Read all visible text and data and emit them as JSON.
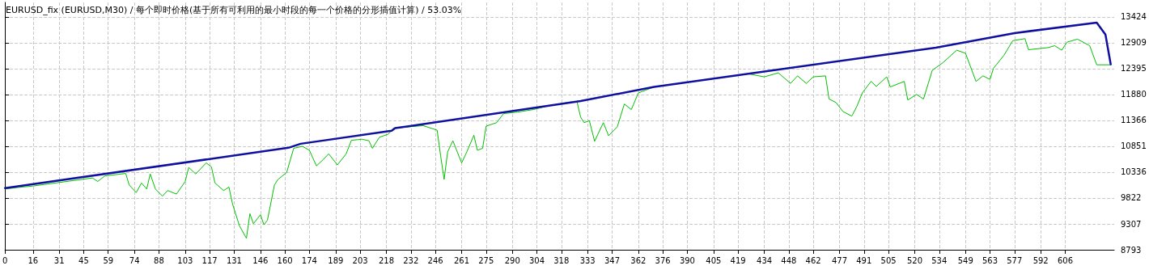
{
  "chart_data": {
    "type": "line",
    "title": "EURUSD_fix (EURUSD,M30) / 每个即时价格(基于所有可利用的最小时段的每一个价格的分形插值计算) / 53.03%",
    "xlim": [
      0,
      634
    ],
    "xticks": [
      0,
      16,
      31,
      45,
      59,
      74,
      88,
      103,
      117,
      131,
      146,
      160,
      174,
      189,
      203,
      218,
      232,
      246,
      261,
      275,
      290,
      304,
      318,
      333,
      347,
      362,
      376,
      390,
      405,
      419,
      434,
      448,
      462,
      477,
      491,
      505,
      520,
      534,
      549,
      563,
      577,
      592,
      606
    ],
    "ylim": [
      8793,
      13710
    ],
    "yticks": [
      8793,
      9307,
      9822,
      10336,
      10851,
      11366,
      11880,
      12395,
      12909,
      13424
    ],
    "grid": true,
    "marker": "none",
    "line_style": "solid",
    "series": [
      {
        "color": "#00c000",
        "x": [
          0,
          7,
          16,
          50,
          53,
          57,
          69,
          71,
          75,
          78,
          81,
          83,
          86,
          90,
          93,
          98,
          103,
          105,
          109,
          115,
          118,
          120,
          125,
          128,
          130,
          134,
          138,
          140,
          142,
          146,
          148,
          150,
          154,
          156,
          161,
          165,
          170,
          174,
          178,
          182,
          185,
          190,
          195,
          198,
          204,
          208,
          210,
          214,
          219,
          222,
          239,
          247,
          249,
          251,
          253,
          256,
          261,
          264,
          268,
          270,
          273,
          275,
          281,
          285,
          293,
          302,
          310,
          323,
          327,
          329,
          331,
          334,
          337,
          342,
          345,
          350,
          354,
          358,
          362,
          371,
          425,
          434,
          442,
          449,
          453,
          458,
          462,
          469,
          471,
          475,
          479,
          484,
          487,
          490,
          495,
          498,
          504,
          506,
          514,
          516,
          521,
          525,
          530,
          536,
          544,
          549,
          555,
          559,
          563,
          565,
          571,
          576,
          583,
          585,
          596,
          600,
          604,
          607,
          613,
          620,
          624,
          632
        ],
        "values": [
          10000,
          10030,
          10060,
          10220,
          10150,
          10260,
          10310,
          10080,
          9930,
          10120,
          10000,
          10300,
          10000,
          9860,
          9970,
          9900,
          10150,
          10430,
          10300,
          10520,
          10440,
          10120,
          9970,
          10040,
          9710,
          9270,
          9020,
          9510,
          9310,
          9490,
          9290,
          9380,
          10080,
          10190,
          10330,
          10810,
          10850,
          10770,
          10460,
          10590,
          10700,
          10480,
          10700,
          10970,
          10990,
          10960,
          10810,
          11030,
          11090,
          11210,
          11260,
          11170,
          10660,
          10190,
          10740,
          10960,
          10520,
          10740,
          11070,
          10770,
          10810,
          11250,
          11320,
          11500,
          11530,
          11580,
          11650,
          11730,
          11730,
          11430,
          11320,
          11360,
          10950,
          11320,
          11060,
          11240,
          11690,
          11580,
          11910,
          12030,
          12290,
          12230,
          12310,
          12100,
          12250,
          12100,
          12230,
          12250,
          11790,
          11720,
          11540,
          11450,
          11650,
          11910,
          12140,
          12040,
          12230,
          12030,
          12140,
          11770,
          11880,
          11790,
          12360,
          12510,
          12760,
          12700,
          12140,
          12250,
          12180,
          12400,
          12660,
          12950,
          12990,
          12770,
          12810,
          12850,
          12760,
          12920,
          12980,
          12850,
          12470,
          12470
        ]
      },
      {
        "color": "#1010a0",
        "x": [
          0,
          162,
          169,
          221,
          223,
          329,
          371,
          532,
          577,
          624,
          629,
          632
        ],
        "values": [
          10020,
          10820,
          10900,
          11160,
          11210,
          11750,
          12030,
          12810,
          13100,
          13310,
          13070,
          12480
        ]
      }
    ]
  }
}
